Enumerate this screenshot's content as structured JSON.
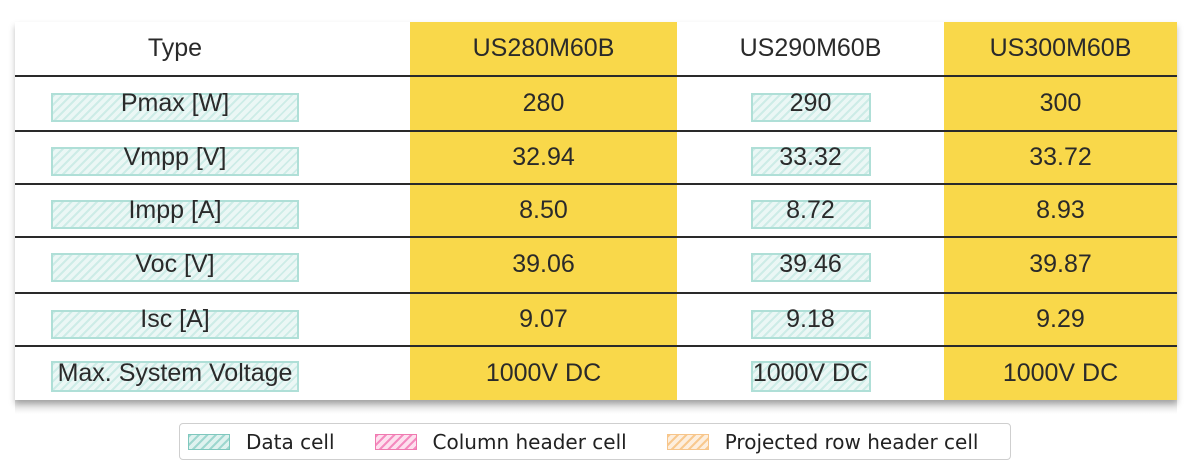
{
  "table": {
    "headers": [
      "Type",
      "US280M60B",
      "US290M60B",
      "US300M60B"
    ],
    "rows": [
      {
        "label": "Pmax [W]",
        "values": [
          "280",
          "290",
          "300"
        ]
      },
      {
        "label": "Vmpp [V]",
        "values": [
          "32.94",
          "33.32",
          "33.72"
        ]
      },
      {
        "label": "Impp [A]",
        "values": [
          "8.50",
          "8.72",
          "8.93"
        ]
      },
      {
        "label": "Voc [V]",
        "values": [
          "39.06",
          "39.46",
          "39.87"
        ]
      },
      {
        "label": "Isc [A]",
        "values": [
          "9.07",
          "9.18",
          "9.29"
        ]
      },
      {
        "label": "Max. System Voltage",
        "values": [
          "1000V DC",
          "1000V DC",
          "1000V DC"
        ]
      }
    ]
  },
  "legend": {
    "items": [
      "Data cell",
      "Column header cell",
      "Projected row header cell"
    ]
  },
  "colors": {
    "column_highlight": "#f9d84a",
    "data_cell_hatch": "#a7dcd3",
    "column_header_hatch": "#f07ab0",
    "projected_row_header_hatch": "#f7c58a"
  }
}
